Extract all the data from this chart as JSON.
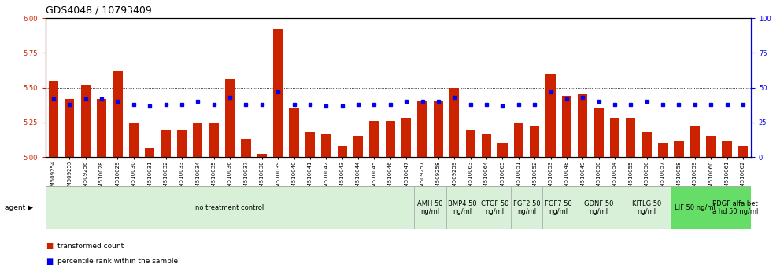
{
  "title": "GDS4048 / 10793409",
  "samples": [
    "GSM509254",
    "GSM509255",
    "GSM509256",
    "GSM510028",
    "GSM510029",
    "GSM510030",
    "GSM510031",
    "GSM510032",
    "GSM510033",
    "GSM510034",
    "GSM510035",
    "GSM510036",
    "GSM510037",
    "GSM510038",
    "GSM510039",
    "GSM510040",
    "GSM510041",
    "GSM510042",
    "GSM510043",
    "GSM510044",
    "GSM510045",
    "GSM510046",
    "GSM510047",
    "GSM509257",
    "GSM509258",
    "GSM509259",
    "GSM510063",
    "GSM510064",
    "GSM510065",
    "GSM510051",
    "GSM510052",
    "GSM510053",
    "GSM510048",
    "GSM510049",
    "GSM510050",
    "GSM510054",
    "GSM510055",
    "GSM510056",
    "GSM510057",
    "GSM510058",
    "GSM510059",
    "GSM510060",
    "GSM510061",
    "GSM510062"
  ],
  "red_values": [
    5.55,
    5.42,
    5.52,
    5.42,
    5.62,
    5.25,
    5.07,
    5.2,
    5.19,
    5.25,
    5.25,
    5.56,
    5.13,
    5.02,
    5.92,
    5.35,
    5.18,
    5.17,
    5.08,
    5.15,
    5.26,
    5.26,
    5.28,
    5.4,
    5.4,
    5.5,
    5.2,
    5.17,
    5.1,
    5.25,
    5.22,
    5.6,
    5.44,
    5.45,
    5.35,
    5.28,
    5.28,
    5.18,
    5.1,
    5.12,
    5.22,
    5.15,
    5.12,
    5.08
  ],
  "blue_values": [
    42,
    38,
    42,
    42,
    40,
    38,
    37,
    38,
    38,
    40,
    38,
    43,
    38,
    38,
    47,
    38,
    38,
    37,
    37,
    38,
    38,
    38,
    40,
    40,
    40,
    43,
    38,
    38,
    37,
    38,
    38,
    47,
    42,
    43,
    40,
    38,
    38,
    40,
    38,
    38,
    38,
    38,
    38,
    38
  ],
  "agents": [
    {
      "label": "no treatment control",
      "start": 0,
      "end": 23,
      "color": "#d8f0d8",
      "bright": false
    },
    {
      "label": "AMH 50\nng/ml",
      "start": 23,
      "end": 25,
      "color": "#d8f0d8",
      "bright": false
    },
    {
      "label": "BMP4 50\nng/ml",
      "start": 25,
      "end": 27,
      "color": "#d8f0d8",
      "bright": false
    },
    {
      "label": "CTGF 50\nng/ml",
      "start": 27,
      "end": 29,
      "color": "#d8f0d8",
      "bright": false
    },
    {
      "label": "FGF2 50\nng/ml",
      "start": 29,
      "end": 31,
      "color": "#d8f0d8",
      "bright": false
    },
    {
      "label": "FGF7 50\nng/ml",
      "start": 31,
      "end": 33,
      "color": "#d8f0d8",
      "bright": false
    },
    {
      "label": "GDNF 50\nng/ml",
      "start": 33,
      "end": 36,
      "color": "#d8f0d8",
      "bright": false
    },
    {
      "label": "KITLG 50\nng/ml",
      "start": 36,
      "end": 39,
      "color": "#d8f0d8",
      "bright": false
    },
    {
      "label": "LIF 50 ng/ml",
      "start": 39,
      "end": 42,
      "color": "#66dd66",
      "bright": true
    },
    {
      "label": "PDGF alfa bet\na hd 50 ng/ml",
      "start": 42,
      "end": 44,
      "color": "#66dd66",
      "bright": true
    }
  ],
  "ylim_left": [
    5.0,
    6.0
  ],
  "ylim_right": [
    0,
    100
  ],
  "yticks_left": [
    5.0,
    5.25,
    5.5,
    5.75,
    6.0
  ],
  "yticks_right": [
    0,
    25,
    50,
    75,
    100
  ],
  "bar_color": "#cc2200",
  "dot_color": "#0000ee",
  "grid_values": [
    5.25,
    5.5,
    5.75
  ],
  "title_fontsize": 9,
  "tick_fontsize": 6,
  "agent_label_fontsize": 6,
  "sample_fontsize": 5
}
